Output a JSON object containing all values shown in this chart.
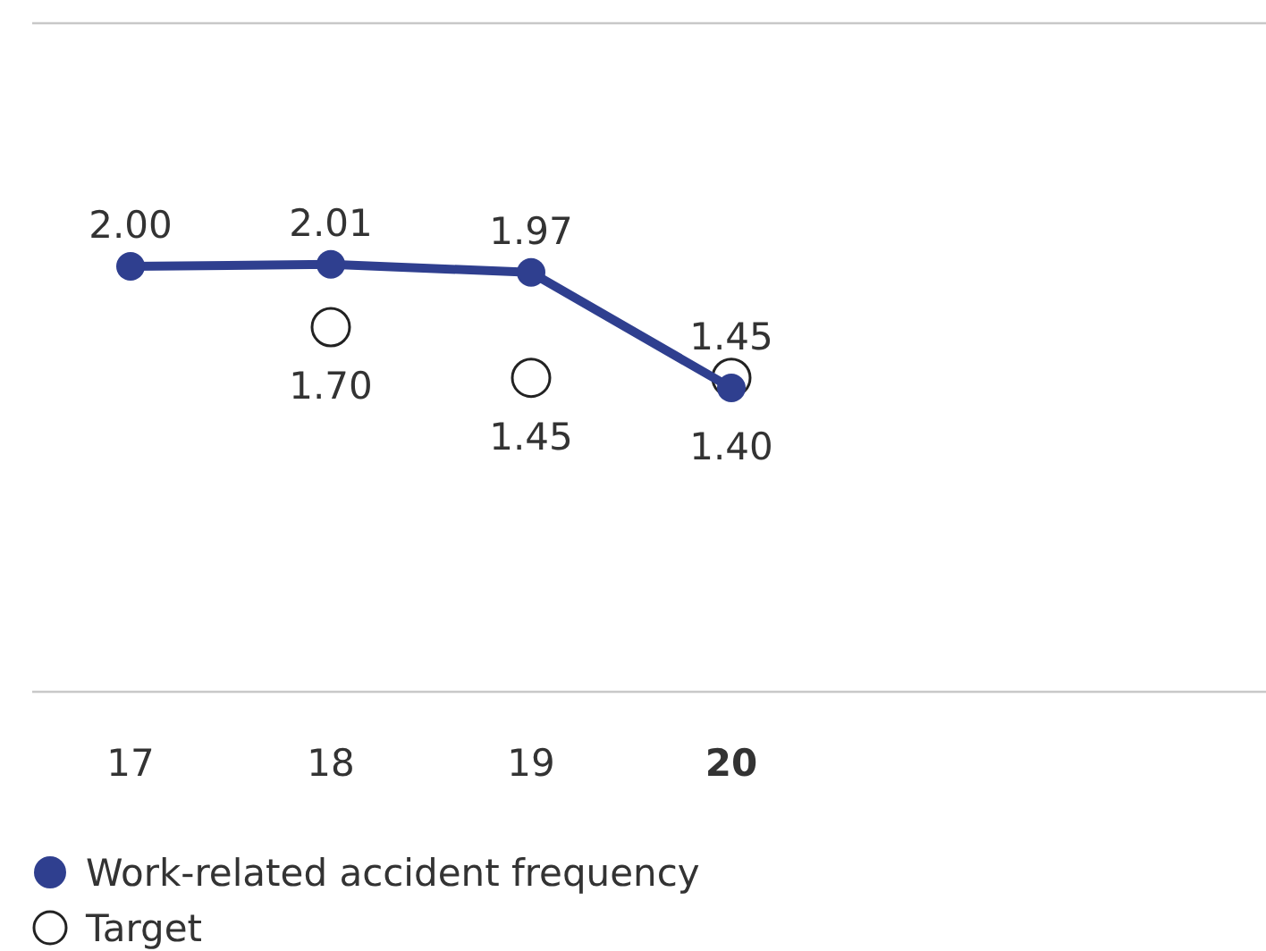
{
  "chart_data": {
    "type": "line",
    "categories": [
      "17",
      "18",
      "19",
      "20"
    ],
    "ylim": [
      -0.1,
      3.2
    ],
    "legend": "bottom",
    "series": [
      {
        "name": "Work-related accident frequency",
        "color": "#2f3f8f",
        "values": [
          2.0,
          2.01,
          1.97,
          1.4
        ],
        "value_labels": [
          "2.00",
          "2.01",
          "1.97",
          "1.40"
        ],
        "marker": "circle"
      },
      {
        "name": "Target",
        "type": "scatter",
        "color": "#222222",
        "values": [
          null,
          1.7,
          1.45,
          1.45
        ],
        "value_labels": [
          null,
          "1.70",
          "1.45",
          "1.45"
        ],
        "marker": "circle"
      }
    ]
  }
}
